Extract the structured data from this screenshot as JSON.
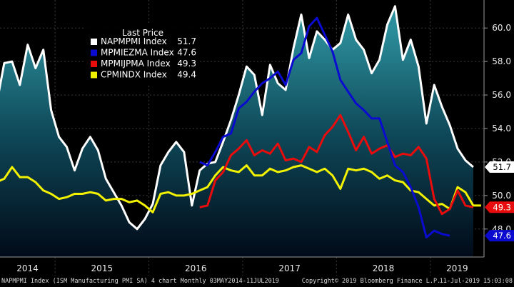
{
  "chart_data": {
    "type": "line",
    "title": "NAPMPMI Index (ISM Manufacturing PMI SA) 4 chart",
    "ylim": [
      46.5,
      61.5
    ],
    "yticks": [
      "48.0",
      "50.0",
      "52.0",
      "54.0",
      "56.0",
      "58.0",
      "60.0"
    ],
    "year_labels": [
      "2014",
      "2015",
      "2016",
      "2017",
      "2018",
      "2019"
    ],
    "x_start": "2014-05",
    "legend": {
      "title": "Last Price",
      "entries": [
        {
          "name": "NAPMPMI Index",
          "value": "51.7"
        },
        {
          "name": "MPMIEZMA Index",
          "value": "47.6"
        },
        {
          "name": "MPMIJPMA Index",
          "value": "49.3"
        },
        {
          "name": "CPMINDX Index",
          "value": "49.4"
        }
      ]
    },
    "series": [
      {
        "name": "NAPMPMI Index",
        "color": "#ffffff",
        "last": 51.7,
        "values": [
          55.4,
          57.9,
          58.0,
          56.6,
          59.0,
          57.6,
          58.7,
          55.1,
          53.5,
          52.9,
          51.5,
          52.8,
          53.5,
          52.7,
          51.0,
          50.2,
          49.4,
          48.4,
          48.0,
          48.6,
          49.5,
          51.8,
          52.6,
          53.2,
          52.6,
          49.4,
          51.5,
          51.9,
          52.0,
          53.2,
          54.5,
          56.0,
          57.7,
          57.2,
          54.8,
          57.8,
          56.7,
          56.3,
          58.8,
          60.8,
          58.2,
          59.8,
          59.3,
          58.7,
          59.1,
          60.8,
          59.3,
          58.7,
          57.3,
          58.1,
          60.2,
          61.3,
          58.1,
          59.3,
          57.7,
          54.3,
          56.6,
          55.3,
          54.2,
          52.8,
          52.1,
          51.7
        ]
      },
      {
        "name": "MPMIEZMA Index",
        "color": "#0b0bcf",
        "last": 47.6,
        "offset": 26,
        "values": [
          52.0,
          51.8,
          52.6,
          53.5,
          53.7,
          55.2,
          55.6,
          56.2,
          56.7,
          57.0,
          57.4,
          56.6,
          58.1,
          58.5,
          60.1,
          60.6,
          59.6,
          58.6,
          56.9,
          56.2,
          55.5,
          55.1,
          54.6,
          54.6,
          53.2,
          51.8,
          51.4,
          50.5,
          49.3,
          47.5,
          47.9,
          47.7,
          47.6
        ]
      },
      {
        "name": "MPMIJPMA Index",
        "color": "#e80c0c",
        "last": 49.3,
        "offset": 26,
        "values": [
          49.3,
          49.4,
          50.9,
          51.4,
          52.4,
          52.8,
          53.3,
          52.4,
          52.7,
          52.5,
          53.1,
          52.1,
          52.2,
          52.0,
          52.9,
          52.6,
          53.6,
          54.1,
          54.8,
          53.8,
          52.7,
          53.5,
          52.5,
          52.8,
          53.0,
          52.3,
          52.5,
          52.4,
          52.9,
          52.2,
          49.8,
          48.9,
          49.2,
          50.3,
          49.4,
          49.3
        ]
      },
      {
        "name": "CPMINDX Index",
        "color": "#f2f200",
        "last": 49.4,
        "values": [
          50.8,
          51.0,
          51.7,
          51.1,
          51.1,
          50.8,
          50.3,
          50.1,
          49.8,
          49.9,
          50.1,
          50.1,
          50.2,
          50.1,
          49.7,
          49.8,
          49.8,
          49.6,
          49.7,
          49.4,
          49.0,
          50.1,
          50.2,
          50.0,
          50.0,
          50.1,
          50.3,
          50.5,
          51.2,
          51.7,
          51.5,
          51.4,
          51.8,
          51.2,
          51.2,
          51.6,
          51.4,
          51.5,
          51.7,
          51.8,
          51.6,
          51.4,
          51.6,
          51.2,
          50.4,
          51.6,
          51.5,
          51.6,
          51.4,
          51.0,
          51.2,
          50.9,
          50.8,
          50.3,
          50.2,
          49.8,
          49.4,
          49.5,
          49.2,
          50.5,
          50.2,
          49.4,
          49.4
        ]
      }
    ],
    "footer": {
      "left": "NAPMPMI Index (ISM Manufacturing PMI SA) 4 chart  Monthly 03MAY2014-11JUL2019",
      "center": "Copyright© 2019 Bloomberg Finance L.P.",
      "right": "11-Jul-2019 15:03:08"
    }
  }
}
